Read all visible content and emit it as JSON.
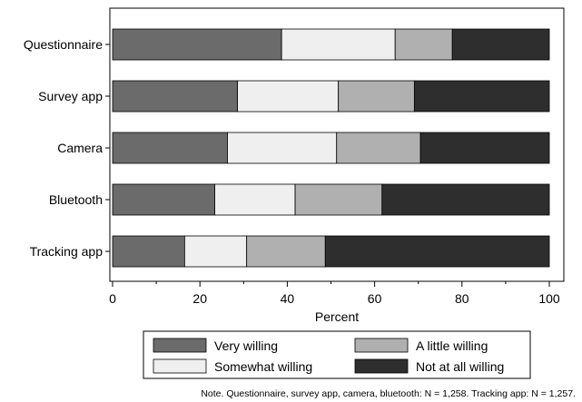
{
  "chart_data": {
    "type": "bar",
    "orientation": "horizontal",
    "stacked": true,
    "categories": [
      "Questionnaire",
      "Survey app",
      "Camera",
      "Bluetooth",
      "Tracking app"
    ],
    "series": [
      {
        "name": "Very willing",
        "values": [
          38.7,
          28.6,
          26.3,
          23.4,
          16.5
        ],
        "color": "#6b6b6b"
      },
      {
        "name": "Somewhat willing",
        "values": [
          26.0,
          23.1,
          25.0,
          18.4,
          14.2
        ],
        "color": "#efefef"
      },
      {
        "name": "A little willing",
        "values": [
          13.1,
          17.4,
          19.2,
          19.9,
          18.0
        ],
        "color": "#b0b0b0"
      },
      {
        "name": "Not at all willing",
        "values": [
          22.2,
          30.9,
          29.5,
          38.3,
          51.3
        ],
        "color": "#2e2e2e"
      }
    ],
    "xlabel": "Percent",
    "ylabel": "",
    "xlim": [
      0,
      100
    ],
    "xticks": [
      0,
      20,
      40,
      60,
      80,
      100
    ],
    "grid": false,
    "legend_position": "bottom"
  },
  "note": "Note. Questionnaire, survey app, camera, bluetooth: N = 1,258. Tracking app: N = 1,257."
}
